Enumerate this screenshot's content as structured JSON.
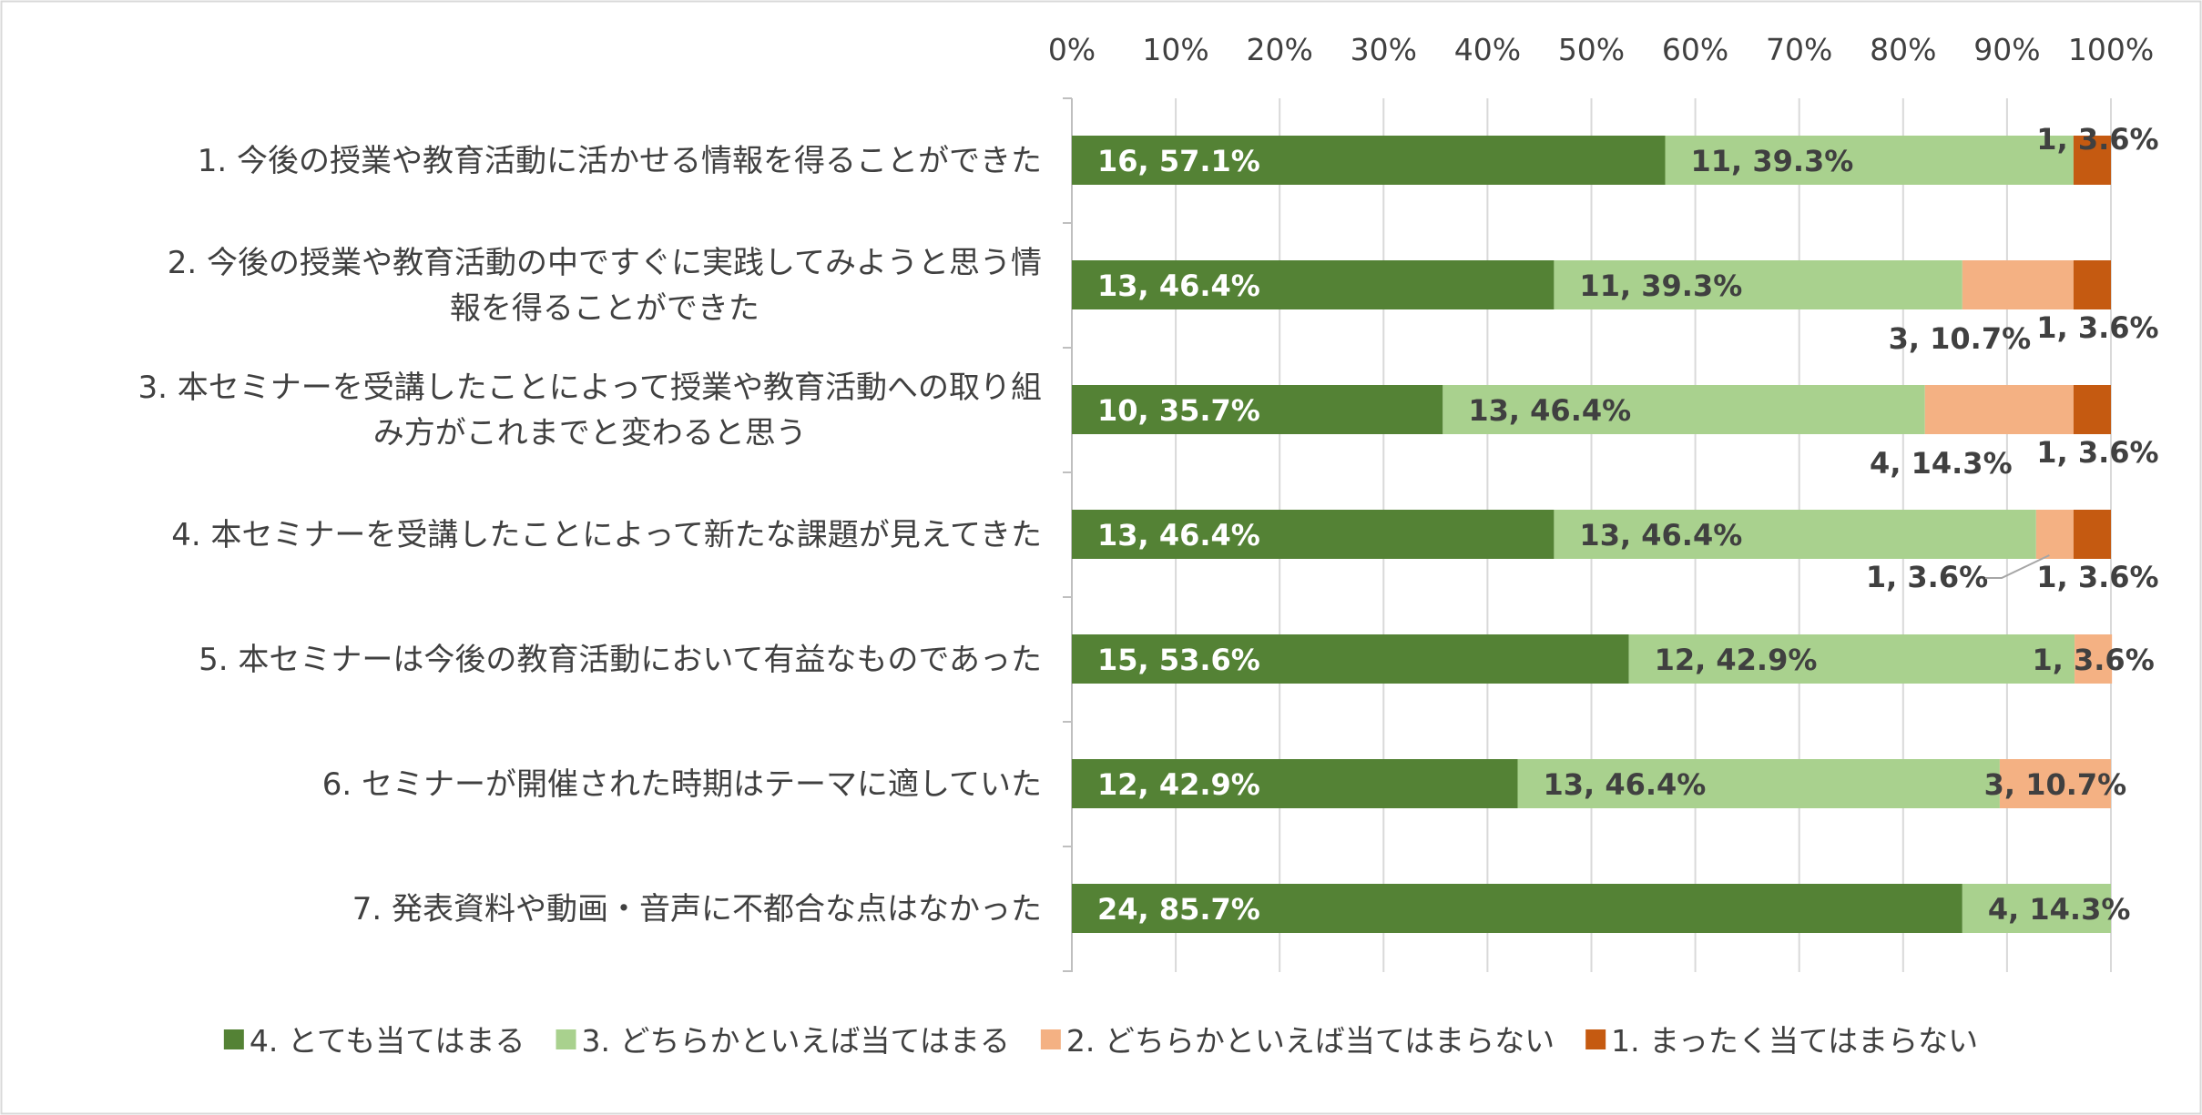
{
  "chart_data": {
    "type": "bar",
    "orientation": "horizontal",
    "stacking": "percent",
    "x_ticks": [
      "0%",
      "10%",
      "20%",
      "30%",
      "40%",
      "50%",
      "60%",
      "70%",
      "80%",
      "90%",
      "100%"
    ],
    "xlim": [
      0,
      100
    ],
    "x_axis_position": "top",
    "grid": true,
    "legend_position": "bottom",
    "categories": [
      [
        "1. 今後の授業や教育活動に活かせる情報を得ることができた"
      ],
      [
        "2. 今後の授業や教育活動の中ですぐに実践してみようと思う情",
        "報を得ることができた"
      ],
      [
        "3. 本セミナーを受講したことによって授業や教育活動への取り組",
        "み方がこれまでと変わると思う"
      ],
      [
        "4. 本セミナーを受講したことによって新たな課題が見えてきた"
      ],
      [
        "5. 本セミナーは今後の教育活動において有益なものであった"
      ],
      [
        "6. セミナーが開催された時期はテーマに適していた"
      ],
      [
        "7. 発表資料や動画・音声に不都合な点はなかった"
      ]
    ],
    "series": [
      {
        "name": "4. とても当てはまる",
        "color": "#548235",
        "label_color": "#ffffff",
        "counts": [
          16,
          13,
          10,
          13,
          15,
          12,
          24
        ],
        "values": [
          57.1,
          46.4,
          35.7,
          46.4,
          53.6,
          42.9,
          85.7
        ],
        "labels": [
          "16, 57.1%",
          "13, 46.4%",
          "10, 35.7%",
          "13, 46.4%",
          "15, 53.6%",
          "12, 42.9%",
          "24, 85.7%"
        ]
      },
      {
        "name": "3. どちらかといえば当てはまる",
        "color": "#a9d18e",
        "label_color": "#404040",
        "counts": [
          11,
          11,
          13,
          13,
          12,
          13,
          4
        ],
        "values": [
          39.3,
          39.3,
          46.4,
          46.4,
          42.9,
          46.4,
          14.3
        ],
        "labels": [
          "11, 39.3%",
          "11, 39.3%",
          "13, 46.4%",
          "13, 46.4%",
          "12, 42.9%",
          "13, 46.4%",
          "4, 14.3%"
        ]
      },
      {
        "name": "2. どちらかといえば当てはまらない",
        "color": "#f4b183",
        "label_color": "#404040",
        "counts": [
          0,
          3,
          4,
          1,
          1,
          3,
          0
        ],
        "values": [
          0,
          10.7,
          14.3,
          3.6,
          3.6,
          10.7,
          0
        ],
        "labels": [
          "",
          "3, 10.7%",
          "4, 14.3%",
          "1, 3.6%",
          "1, 3.6%",
          "3, 10.7%",
          ""
        ]
      },
      {
        "name": "1. まったく当てはまらない",
        "color": "#c55a11",
        "label_color": "#404040",
        "counts": [
          1,
          1,
          1,
          1,
          0,
          0,
          0
        ],
        "values": [
          3.6,
          3.6,
          3.6,
          3.6,
          0,
          0,
          0
        ],
        "labels": [
          "1, 3.6%",
          "1, 3.6%",
          "1, 3.6%",
          "1, 3.6%",
          "",
          "",
          ""
        ]
      }
    ]
  }
}
